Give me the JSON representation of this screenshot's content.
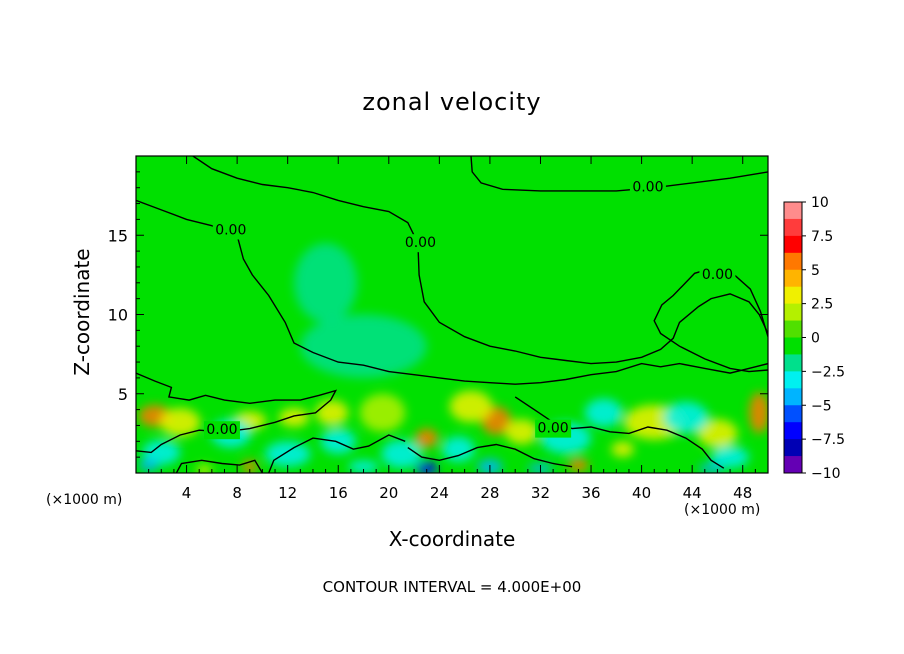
{
  "title": "zonal velocity",
  "xlabel": "X-coordinate",
  "ylabel": "Z-coordinate",
  "x_unit_left": "(×1000 m)",
  "x_unit_right": "(×1000 m)",
  "footnote": "CONTOUR INTERVAL = 4.000E+00",
  "colors": {
    "background": "#00e000",
    "contour_line": "#000000"
  },
  "contour_label": "0.00",
  "chart_data": {
    "type": "heatmap",
    "title": "zonal velocity",
    "xlabel": "X-coordinate",
    "ylabel": "Z-coordinate",
    "xlim": [
      0,
      50
    ],
    "ylim": [
      0,
      20
    ],
    "x_ticks": [
      4,
      8,
      12,
      16,
      20,
      24,
      28,
      32,
      36,
      40,
      44,
      48
    ],
    "y_ticks": [
      5,
      10,
      15
    ],
    "colorbar": {
      "ticks": [
        "10",
        "7.5",
        "5",
        "2.5",
        "0",
        "−2.5",
        "−5",
        "−7.5",
        "−10"
      ],
      "levels": [
        {
          "from": 8.75,
          "to": 10,
          "color": "#ff8c8c"
        },
        {
          "from": 7.5,
          "to": 8.75,
          "color": "#ff3c3c"
        },
        {
          "from": 6.25,
          "to": 7.5,
          "color": "#ff0000"
        },
        {
          "from": 5,
          "to": 6.25,
          "color": "#ff7800"
        },
        {
          "from": 3.75,
          "to": 5,
          "color": "#ffb400"
        },
        {
          "from": 2.5,
          "to": 3.75,
          "color": "#f0f000"
        },
        {
          "from": 1.25,
          "to": 2.5,
          "color": "#b4f000"
        },
        {
          "from": 0,
          "to": 1.25,
          "color": "#50e000"
        },
        {
          "from": -1.25,
          "to": 0,
          "color": "#00e000"
        },
        {
          "from": -2.5,
          "to": -1.25,
          "color": "#00e08c"
        },
        {
          "from": -3.75,
          "to": -2.5,
          "color": "#00f0f0"
        },
        {
          "from": -5,
          "to": -3.75,
          "color": "#00b4ff"
        },
        {
          "from": -6.25,
          "to": -5,
          "color": "#0050ff"
        },
        {
          "from": -7.5,
          "to": -6.25,
          "color": "#0000ff"
        },
        {
          "from": -8.75,
          "to": -7.5,
          "color": "#0000b4"
        },
        {
          "from": -10,
          "to": -8.75,
          "color": "#6400b4"
        }
      ]
    },
    "features": [
      {
        "x": 1.5,
        "z": 3.6,
        "rx": 1.3,
        "rz": 0.7,
        "value": 5
      },
      {
        "x": 3.5,
        "z": 3.2,
        "rx": 1.6,
        "rz": 0.9,
        "value": 2.5
      },
      {
        "x": 9.0,
        "z": 3.3,
        "rx": 1.3,
        "rz": 0.6,
        "value": 3
      },
      {
        "x": 12.5,
        "z": 3.5,
        "rx": 1.2,
        "rz": 0.6,
        "value": 3
      },
      {
        "x": 15.5,
        "z": 3.8,
        "rx": 1.3,
        "rz": 0.8,
        "value": 3
      },
      {
        "x": 19.5,
        "z": 3.8,
        "rx": 1.8,
        "rz": 1.2,
        "value": 2
      },
      {
        "x": 23.0,
        "z": 2.2,
        "rx": 0.9,
        "rz": 0.6,
        "value": 5
      },
      {
        "x": 28.5,
        "z": 3.3,
        "rx": 1.2,
        "rz": 0.9,
        "value": 5
      },
      {
        "x": 26.5,
        "z": 4.2,
        "rx": 1.7,
        "rz": 1.0,
        "value": 2.5
      },
      {
        "x": 30.5,
        "z": 2.6,
        "rx": 1.3,
        "rz": 0.8,
        "value": 2.5
      },
      {
        "x": 35.0,
        "z": 0.5,
        "rx": 0.8,
        "rz": 0.4,
        "value": 5
      },
      {
        "x": 9.0,
        "z": 0.4,
        "rx": 0.6,
        "rz": 0.4,
        "value": 5
      },
      {
        "x": 5.4,
        "z": 0.2,
        "rx": 0.6,
        "rz": 0.3,
        "value": 3
      },
      {
        "x": 41.0,
        "z": 3.2,
        "rx": 2.4,
        "rz": 1.1,
        "value": 2.5
      },
      {
        "x": 46.0,
        "z": 2.5,
        "rx": 1.6,
        "rz": 0.9,
        "value": 2.5
      },
      {
        "x": 49.3,
        "z": 3.8,
        "rx": 0.8,
        "rz": 1.3,
        "value": 5
      },
      {
        "x": 38.5,
        "z": 1.5,
        "rx": 0.9,
        "rz": 0.5,
        "value": 3
      },
      {
        "x": 2.0,
        "z": 1.3,
        "rx": 1.5,
        "rz": 0.8,
        "value": -3
      },
      {
        "x": 1.0,
        "z": 0.5,
        "rx": 0.8,
        "rz": 0.4,
        "value": -5
      },
      {
        "x": 7.5,
        "z": 2.5,
        "rx": 1.6,
        "rz": 0.9,
        "value": -3
      },
      {
        "x": 12.0,
        "z": 1.2,
        "rx": 1.8,
        "rz": 0.8,
        "value": -3
      },
      {
        "x": 16.0,
        "z": 2.0,
        "rx": 1.4,
        "rz": 0.8,
        "value": -3
      },
      {
        "x": 21.0,
        "z": 1.2,
        "rx": 1.6,
        "rz": 0.9,
        "value": -3
      },
      {
        "x": 23.0,
        "z": 0.3,
        "rx": 0.9,
        "rz": 0.4,
        "value": -7.5
      },
      {
        "x": 28.0,
        "z": 0.4,
        "rx": 1.0,
        "rz": 0.5,
        "value": -5
      },
      {
        "x": 25.5,
        "z": 1.5,
        "rx": 1.3,
        "rz": 0.8,
        "value": -3
      },
      {
        "x": 34.0,
        "z": 2.2,
        "rx": 2.0,
        "rz": 1.0,
        "value": -3
      },
      {
        "x": 37.0,
        "z": 3.8,
        "rx": 1.5,
        "rz": 0.9,
        "value": -3
      },
      {
        "x": 43.5,
        "z": 3.5,
        "rx": 1.8,
        "rz": 1.0,
        "value": -3
      },
      {
        "x": 47.0,
        "z": 1.0,
        "rx": 1.5,
        "rz": 0.7,
        "value": -3
      },
      {
        "x": 45.5,
        "z": 0.3,
        "rx": 1.0,
        "rz": 0.3,
        "value": -5
      },
      {
        "x": 32.0,
        "z": 0.3,
        "rx": 1.0,
        "rz": 0.3,
        "value": -5
      },
      {
        "x": 18.0,
        "z": 0.4,
        "rx": 1.2,
        "rz": 0.4,
        "value": -3
      },
      {
        "x": 15.0,
        "z": 12.0,
        "rx": 2.5,
        "rz": 2.5,
        "value": -1.5
      },
      {
        "x": 18.0,
        "z": 8.0,
        "rx": 5.0,
        "rz": 2.0,
        "value": -1.5
      }
    ],
    "contours": [
      {
        "value": 0,
        "label_x": 7.5,
        "label_z": 15.3,
        "points": [
          [
            0,
            17.2
          ],
          [
            2,
            16.6
          ],
          [
            4,
            16.0
          ],
          [
            6,
            15.6
          ],
          [
            8,
            15.0
          ],
          [
            8.5,
            13.5
          ],
          [
            9.2,
            12.5
          ],
          [
            10.5,
            11.2
          ],
          [
            11.8,
            9.5
          ],
          [
            12.5,
            8.2
          ],
          [
            14,
            7.6
          ],
          [
            16,
            7.0
          ],
          [
            18,
            6.8
          ],
          [
            20,
            6.4
          ],
          [
            22,
            6.2
          ],
          [
            24,
            6.0
          ],
          [
            26,
            5.8
          ],
          [
            28,
            5.7
          ],
          [
            30,
            5.6
          ],
          [
            32,
            5.7
          ],
          [
            34,
            5.9
          ],
          [
            36,
            6.2
          ],
          [
            38,
            6.4
          ],
          [
            40,
            6.9
          ],
          [
            41.5,
            6.7
          ],
          [
            43,
            6.9
          ],
          [
            45,
            6.6
          ],
          [
            47,
            6.3
          ],
          [
            49,
            6.7
          ],
          [
            50,
            6.9
          ]
        ]
      },
      {
        "value": 0,
        "label_x": 22.5,
        "label_z": 14.5,
        "points": [
          [
            4.5,
            20
          ],
          [
            6,
            19.2
          ],
          [
            8,
            18.6
          ],
          [
            10,
            18.2
          ],
          [
            12,
            18.0
          ],
          [
            14,
            17.7
          ],
          [
            16,
            17.2
          ],
          [
            18,
            16.8
          ],
          [
            20,
            16.5
          ],
          [
            21.5,
            15.8
          ],
          [
            22.3,
            14.5
          ],
          [
            22.4,
            12.5
          ],
          [
            22.8,
            10.8
          ],
          [
            24,
            9.5
          ],
          [
            26,
            8.6
          ],
          [
            28,
            8.0
          ],
          [
            30,
            7.7
          ],
          [
            32,
            7.3
          ],
          [
            34,
            7.1
          ],
          [
            36,
            6.9
          ],
          [
            38,
            7.0
          ],
          [
            40,
            7.3
          ],
          [
            41.5,
            7.8
          ],
          [
            42.5,
            8.5
          ],
          [
            43,
            9.5
          ],
          [
            44.5,
            10.5
          ],
          [
            45.5,
            11.0
          ],
          [
            47,
            11.3
          ],
          [
            48.5,
            10.8
          ],
          [
            49.3,
            10.0
          ],
          [
            50,
            8.8
          ]
        ]
      },
      {
        "value": 0,
        "label_x": 40.5,
        "label_z": 18.0,
        "points": [
          [
            26.5,
            20
          ],
          [
            26.6,
            19.0
          ],
          [
            27.3,
            18.3
          ],
          [
            29,
            17.9
          ],
          [
            32,
            17.8
          ],
          [
            35,
            17.8
          ],
          [
            38,
            17.8
          ],
          [
            41,
            18.0
          ],
          [
            44,
            18.3
          ],
          [
            47,
            18.6
          ],
          [
            50,
            19.0
          ]
        ]
      },
      {
        "value": 0,
        "label_x": 46.0,
        "label_z": 12.5,
        "points": [
          [
            50,
            8.6
          ],
          [
            49.4,
            10.2
          ],
          [
            48.6,
            11.6
          ],
          [
            47.2,
            12.6
          ],
          [
            45.5,
            12.9
          ],
          [
            44.2,
            12.6
          ],
          [
            42.5,
            11.2
          ],
          [
            41.6,
            10.6
          ],
          [
            41.0,
            9.6
          ],
          [
            41.5,
            8.8
          ],
          [
            43,
            8.0
          ],
          [
            45,
            7.2
          ],
          [
            47,
            6.6
          ],
          [
            48.5,
            6.4
          ],
          [
            50,
            6.5
          ]
        ]
      },
      {
        "value": 0,
        "label_x": 6.8,
        "label_z": 2.7,
        "points": [
          [
            0,
            6.3
          ],
          [
            1.5,
            5.8
          ],
          [
            2.8,
            5.4
          ],
          [
            2.6,
            4.8
          ],
          [
            4.2,
            4.6
          ],
          [
            5.5,
            4.9
          ],
          [
            7,
            4.6
          ],
          [
            9,
            4.4
          ],
          [
            11,
            4.6
          ],
          [
            13,
            4.6
          ],
          [
            14.5,
            4.9
          ],
          [
            15.8,
            5.2
          ],
          [
            15.4,
            4.6
          ],
          [
            14.2,
            3.8
          ],
          [
            12.5,
            3.6
          ],
          [
            11,
            3.2
          ],
          [
            9,
            2.8
          ],
          [
            7,
            2.6
          ],
          [
            5,
            2.7
          ],
          [
            3.5,
            2.4
          ],
          [
            2,
            1.8
          ],
          [
            1.2,
            1.3
          ],
          [
            0,
            1.4
          ]
        ]
      },
      {
        "value": 0,
        "label_x": 33.0,
        "label_z": 2.8,
        "points": [
          [
            30,
            4.8
          ],
          [
            31.5,
            4.0
          ],
          [
            33,
            3.2
          ],
          [
            34.5,
            2.8
          ],
          [
            36,
            2.9
          ],
          [
            37.5,
            2.6
          ],
          [
            39,
            2.5
          ],
          [
            40.5,
            2.9
          ],
          [
            42,
            2.7
          ],
          [
            43.5,
            2.2
          ],
          [
            44.8,
            1.5
          ],
          [
            45.5,
            0.8
          ],
          [
            46.5,
            0.3
          ]
        ]
      },
      {
        "value": 0,
        "label_x": 0,
        "label_z": 0,
        "points": [
          [
            21.5,
            1.6
          ],
          [
            22.6,
            1.0
          ],
          [
            24.0,
            0.8
          ],
          [
            25.5,
            1.1
          ],
          [
            27,
            1.6
          ],
          [
            28.5,
            1.8
          ],
          [
            30,
            1.5
          ],
          [
            31.5,
            0.9
          ],
          [
            33,
            0.6
          ],
          [
            34.5,
            0.4
          ]
        ]
      },
      {
        "value": 0,
        "label_x": 0,
        "label_z": 0,
        "points": [
          [
            10.5,
            0.0
          ],
          [
            10.9,
            0.8
          ],
          [
            12.5,
            1.6
          ],
          [
            14,
            2.2
          ],
          [
            15.8,
            2.0
          ],
          [
            17.2,
            1.5
          ],
          [
            18.4,
            1.7
          ],
          [
            20,
            2.4
          ],
          [
            21.3,
            2.0
          ]
        ]
      },
      {
        "value": 0,
        "label_x": 0,
        "label_z": 0,
        "points": [
          [
            3.2,
            0.0
          ],
          [
            3.6,
            0.6
          ],
          [
            5.2,
            0.8
          ],
          [
            6.8,
            0.6
          ],
          [
            8.2,
            0.5
          ],
          [
            9.4,
            0.8
          ],
          [
            10.0,
            0.0
          ]
        ]
      }
    ]
  }
}
